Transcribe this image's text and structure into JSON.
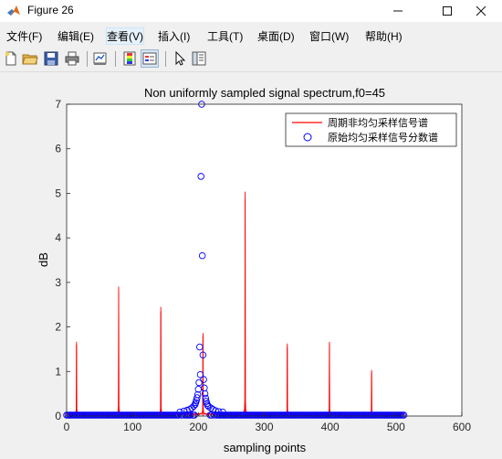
{
  "window": {
    "title": "Figure 26"
  },
  "menu": [
    "文件(F)",
    "编辑(E)",
    "查看(V)",
    "插入(I)",
    "工具(T)",
    "桌面(D)",
    "窗口(W)",
    "帮助(H)"
  ],
  "toolbar": {
    "buttons": [
      "new-figure",
      "open-file",
      "save",
      "print",
      "link-plot",
      "colorbar",
      "legend",
      "edit-plot",
      "property-inspector"
    ]
  },
  "chart_data": {
    "type": "line",
    "title": "Non uniformly sampled signal spectrum,f0=45",
    "xlabel": "sampling points",
    "ylabel": "dB",
    "xlim": [
      0,
      600
    ],
    "ylim": [
      0,
      7
    ],
    "xticks": [
      "0",
      "100",
      "200",
      "300",
      "400",
      "500",
      "600"
    ],
    "yticks": [
      "0",
      "1",
      "2",
      "3",
      "4",
      "5",
      "6",
      "7"
    ],
    "grid": false,
    "legend_position": "top-right",
    "series": [
      {
        "name": "周期非均匀采样信号谱",
        "style": "line",
        "color": "#ff0000",
        "peaks": [
          {
            "x": 15,
            "y": 1.6
          },
          {
            "x": 79,
            "y": 2.8
          },
          {
            "x": 143,
            "y": 2.35
          },
          {
            "x": 207,
            "y": 1.8
          },
          {
            "x": 271,
            "y": 4.88
          },
          {
            "x": 335,
            "y": 1.55
          },
          {
            "x": 399,
            "y": 1.6
          },
          {
            "x": 463,
            "y": 0.97
          }
        ],
        "x_range": [
          0,
          512
        ]
      },
      {
        "name": "原始均匀采样信号分数谱",
        "style": "circles",
        "color": "#0000ff",
        "points": [
          [
            205,
            7.0
          ],
          [
            204,
            5.38
          ],
          [
            206,
            3.6
          ],
          [
            202,
            1.55
          ],
          [
            207,
            1.37
          ],
          [
            203,
            0.93
          ],
          [
            208,
            0.82
          ],
          [
            201,
            0.75
          ],
          [
            209,
            0.63
          ],
          [
            200,
            0.6
          ],
          [
            199,
            0.48
          ],
          [
            210,
            0.5
          ],
          [
            198,
            0.41
          ],
          [
            211,
            0.4
          ],
          [
            197,
            0.35
          ],
          [
            212,
            0.33
          ],
          [
            196,
            0.3
          ],
          [
            213,
            0.28
          ],
          [
            195,
            0.26
          ],
          [
            214,
            0.24
          ],
          [
            193,
            0.22
          ],
          [
            216,
            0.21
          ],
          [
            190,
            0.18
          ],
          [
            219,
            0.18
          ],
          [
            187,
            0.15
          ],
          [
            222,
            0.15
          ],
          [
            183,
            0.13
          ],
          [
            226,
            0.12
          ],
          [
            178,
            0.11
          ],
          [
            231,
            0.1
          ],
          [
            172,
            0.09
          ],
          [
            237,
            0.09
          ]
        ],
        "baseline_range": [
          0,
          512
        ],
        "baseline_value": 0.02
      }
    ]
  }
}
